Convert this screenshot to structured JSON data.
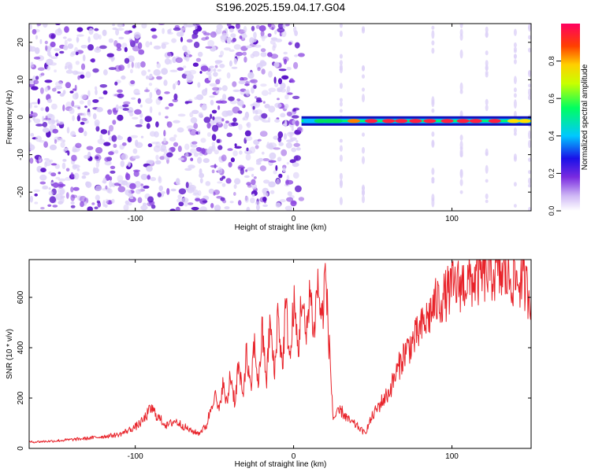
{
  "title": "S196.2025.159.04.17.G04",
  "colors": {
    "spectrogram_low": "#ddd2f8",
    "spectrogram_mid": "#8a44e0",
    "spectrogram_high": "#5a12c8",
    "snr_line": "#e8232a",
    "axis": "#000000"
  },
  "chart_data": [
    {
      "type": "heatmap",
      "xlabel": "Height of straight line (km)",
      "ylabel": "Frequency (Hz)",
      "xlim": [
        -167,
        150
      ],
      "ylim": [
        -25,
        25
      ],
      "x_ticks": [
        -100,
        0,
        100
      ],
      "y_ticks": [
        -20,
        -10,
        0,
        10,
        20
      ],
      "grid": false,
      "colorbar": {
        "label": "Normalized spectral amplitude",
        "range": [
          0.0,
          1.0
        ],
        "ticks": [
          "0.0",
          "0.2",
          "0.4",
          "0.6",
          "0.8"
        ],
        "colormap": [
          "#ffffff",
          "#cfb8f5",
          "#7a2be0",
          "#1a10e8",
          "#00c8ff",
          "#00ff60",
          "#c8ff00",
          "#ffd000",
          "#ff4000",
          "#ff0060"
        ]
      },
      "features": {
        "noise_region_x": [
          -167,
          5
        ],
        "noise_amplitude_range": [
          0.0,
          0.2
        ],
        "line_start_x": 5,
        "line_frequency_hz": -1,
        "line_peaks": [
          {
            "x": 10,
            "amp": 0.35
          },
          {
            "x": 17,
            "amp": 0.45
          },
          {
            "x": 22,
            "amp": 0.5
          },
          {
            "x": 27,
            "amp": 0.55
          },
          {
            "x": 38,
            "amp": 0.85
          },
          {
            "x": 49,
            "amp": 0.95
          },
          {
            "x": 60,
            "amp": 0.95
          },
          {
            "x": 68,
            "amp": 0.9
          },
          {
            "x": 77,
            "amp": 0.95
          },
          {
            "x": 86,
            "amp": 0.95
          },
          {
            "x": 97,
            "amp": 0.95
          },
          {
            "x": 107,
            "amp": 0.95
          },
          {
            "x": 115,
            "amp": 0.9
          },
          {
            "x": 127,
            "amp": 0.95
          },
          {
            "x": 139,
            "amp": 0.65
          },
          {
            "x": 146,
            "amp": 0.6
          }
        ],
        "vertical_streaks_x": [
          30,
          44,
          88,
          106,
          122,
          140,
          149
        ]
      }
    },
    {
      "type": "line",
      "xlabel": "Height of straight line (km)",
      "ylabel": "SNR (10 * v/v)",
      "xlim": [
        -167,
        150
      ],
      "ylim": [
        0,
        750
      ],
      "x_ticks": [
        -100,
        0,
        100
      ],
      "y_ticks": [
        0,
        200,
        400,
        600
      ],
      "grid": false,
      "series": [
        {
          "x": [
            -167,
            -150,
            -130,
            -110,
            -100,
            -95,
            -90,
            -85,
            -80,
            -75,
            -70,
            -65,
            -60,
            -55,
            -50,
            -47,
            -45,
            -42,
            -40,
            -37,
            -35,
            -32,
            -30,
            -27,
            -25,
            -22,
            -20,
            -17,
            -15,
            -12,
            -10,
            -7,
            -5,
            -2,
            0,
            3,
            5,
            8,
            10,
            13,
            15,
            18,
            20,
            25,
            30,
            35,
            40,
            45,
            50,
            55,
            60,
            65,
            70,
            75,
            80,
            85,
            88,
            90,
            95,
            100,
            105,
            110,
            115,
            120,
            125,
            130,
            135,
            140,
            145,
            150
          ],
          "y": [
            25,
            30,
            40,
            55,
            85,
            110,
            160,
            120,
            90,
            110,
            90,
            70,
            60,
            90,
            220,
            140,
            260,
            170,
            300,
            180,
            330,
            200,
            380,
            220,
            420,
            250,
            470,
            270,
            500,
            290,
            540,
            320,
            570,
            340,
            580,
            380,
            610,
            420,
            640,
            460,
            660,
            500,
            700,
            120,
            150,
            110,
            90,
            60,
            130,
            180,
            220,
            300,
            380,
            420,
            470,
            520,
            560,
            580,
            600,
            640,
            650,
            660,
            670,
            690,
            700,
            690,
            680,
            670,
            660,
            600
          ]
        }
      ]
    }
  ]
}
